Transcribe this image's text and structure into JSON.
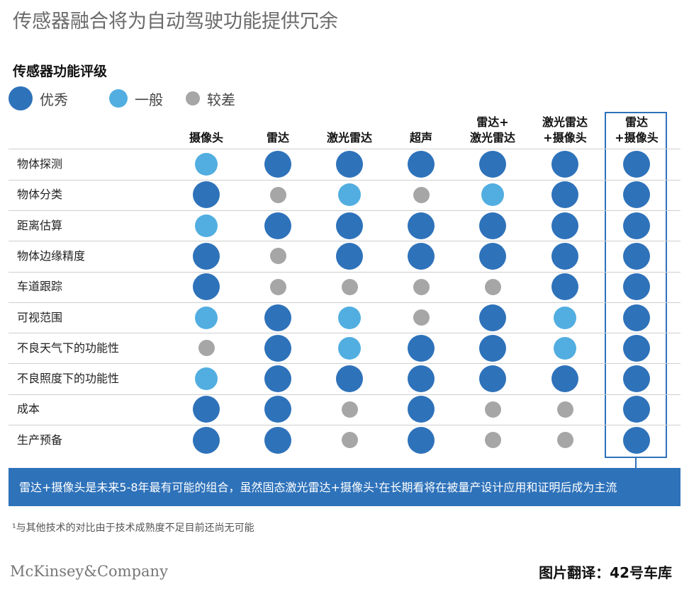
{
  "title": "传感器融合将为自动驾驶功能提供冗余",
  "section_title": "传感器功能评级",
  "legend": [
    {
      "key": "excellent",
      "label": "优秀",
      "color": "#2e72ba"
    },
    {
      "key": "average",
      "label": "一般",
      "color": "#52aee0"
    },
    {
      "key": "poor",
      "label": "较差",
      "color": "#a6a6a6"
    }
  ],
  "chart_data": {
    "type": "table",
    "title": "传感器功能评级",
    "columns": [
      "摄像头",
      "雷达",
      "激光雷达",
      "超声",
      "雷达+\n激光雷达",
      "激光雷达\n+摄像头",
      "雷达\n+摄像头"
    ],
    "rows": [
      "物体探测",
      "物体分类",
      "距离估算",
      "物体边缘精度",
      "车道跟踪",
      "可视范围",
      "不良天气下的功能性",
      "不良照度下的功能性",
      "成本",
      "生产预备"
    ],
    "ratings": [
      [
        "一般",
        "优秀",
        "优秀",
        "优秀",
        "优秀",
        "优秀",
        "优秀"
      ],
      [
        "优秀",
        "较差",
        "一般",
        "较差",
        "一般",
        "优秀",
        "优秀"
      ],
      [
        "一般",
        "优秀",
        "优秀",
        "优秀",
        "优秀",
        "优秀",
        "优秀"
      ],
      [
        "优秀",
        "较差",
        "优秀",
        "优秀",
        "优秀",
        "优秀",
        "优秀"
      ],
      [
        "优秀",
        "较差",
        "较差",
        "较差",
        "较差",
        "优秀",
        "优秀"
      ],
      [
        "一般",
        "优秀",
        "一般",
        "较差",
        "优秀",
        "一般",
        "优秀"
      ],
      [
        "较差",
        "优秀",
        "一般",
        "优秀",
        "优秀",
        "一般",
        "优秀"
      ],
      [
        "一般",
        "优秀",
        "优秀",
        "优秀",
        "优秀",
        "优秀",
        "优秀"
      ],
      [
        "优秀",
        "优秀",
        "较差",
        "优秀",
        "较差",
        "较差",
        "优秀"
      ],
      [
        "优秀",
        "优秀",
        "较差",
        "优秀",
        "较差",
        "较差",
        "优秀"
      ]
    ],
    "highlighted_column": "雷达\n+摄像头"
  },
  "banner_text": "雷达+摄像头是未来5-8年最有可能的组合，虽然固态激光雷达+摄像头¹在长期看将在被量产设计应用和证明后成为主流",
  "footnote": "¹与其他技术的对比由于技术成熟度不足目前还尚无可能",
  "brand": "McKinsey&Company",
  "credit": "图片翻译：42号车库"
}
